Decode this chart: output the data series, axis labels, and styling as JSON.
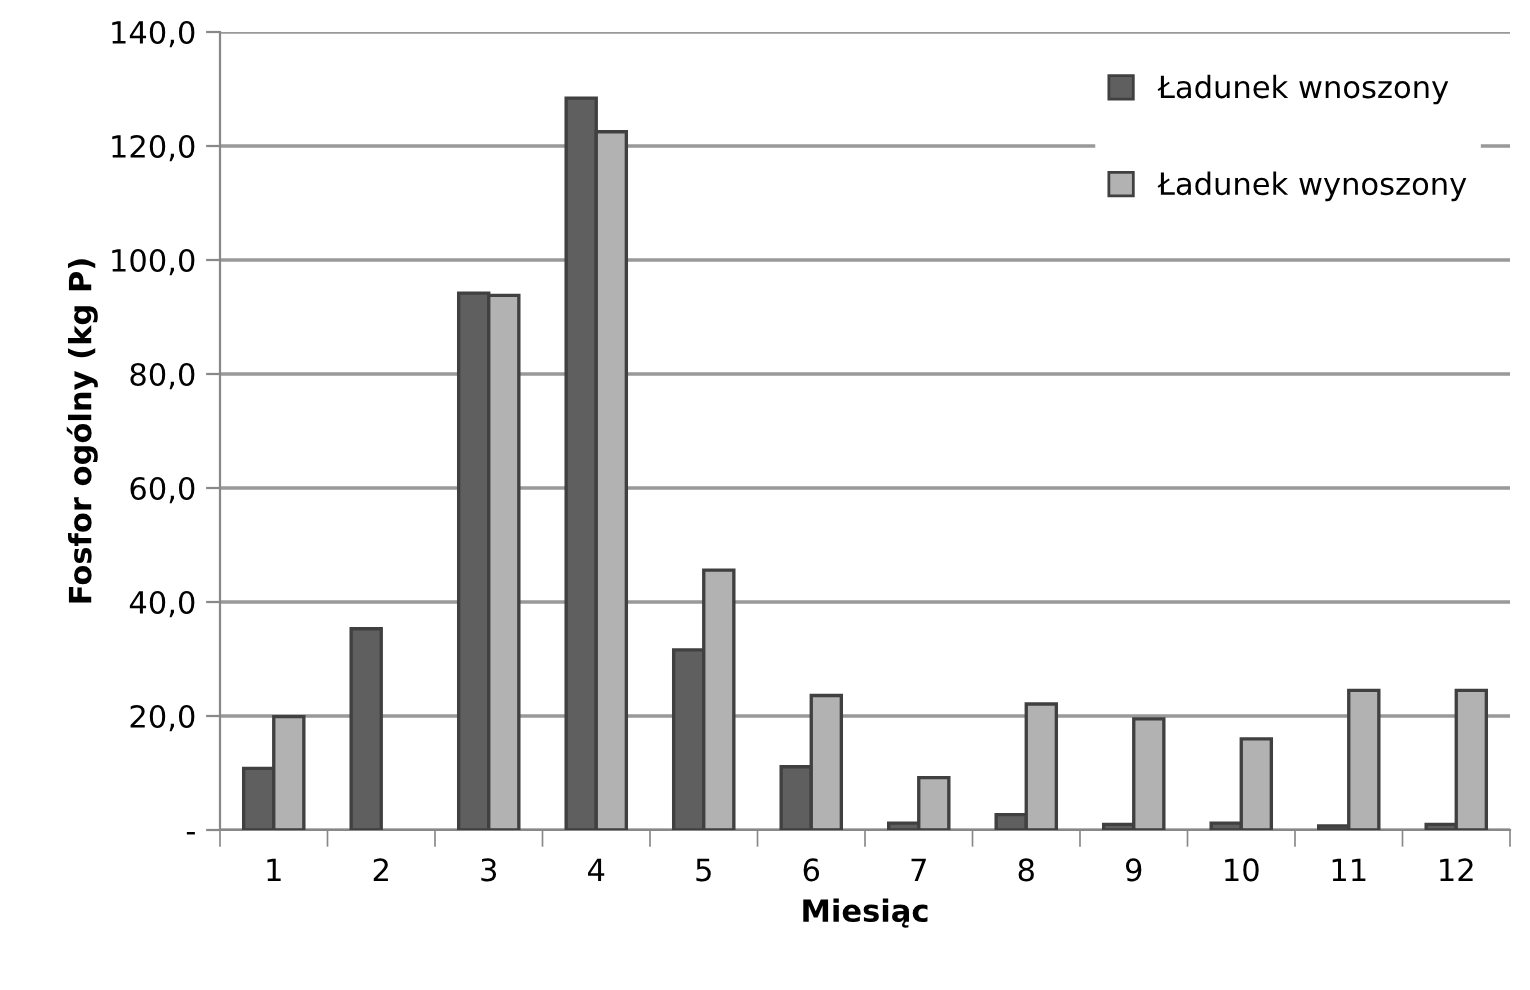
{
  "chart_data": {
    "type": "bar",
    "xlabel": "Miesiąc",
    "ylabel": "Fosfor ogólny (kg P)",
    "categories": [
      "1",
      "2",
      "3",
      "4",
      "5",
      "6",
      "7",
      "8",
      "9",
      "10",
      "11",
      "12"
    ],
    "series": [
      {
        "name": "Ładunek wnoszony",
        "color": "#5f5f5f",
        "values": [
          10.8,
          35.3,
          94.2,
          128.4,
          31.6,
          11.1,
          1.2,
          2.7,
          1.0,
          1.2,
          0.7,
          1.0
        ]
      },
      {
        "name": "Ładunek wynoszony",
        "color": "#b2b2b2",
        "values": [
          19.9,
          null,
          93.8,
          122.5,
          45.6,
          23.6,
          9.2,
          22.1,
          19.5,
          16.0,
          24.5,
          24.5
        ]
      }
    ],
    "ylim": [
      0,
      140
    ],
    "yticks": [
      {
        "value": 0,
        "label": "-"
      },
      {
        "value": 20,
        "label": "20,0"
      },
      {
        "value": 40,
        "label": "40,0"
      },
      {
        "value": 60,
        "label": "60,0"
      },
      {
        "value": 80,
        "label": "80,0"
      },
      {
        "value": 100,
        "label": "100,0"
      },
      {
        "value": 120,
        "label": "120,0"
      },
      {
        "value": 140,
        "label": "140,0"
      }
    ],
    "grid": "y",
    "legend": "top right"
  }
}
